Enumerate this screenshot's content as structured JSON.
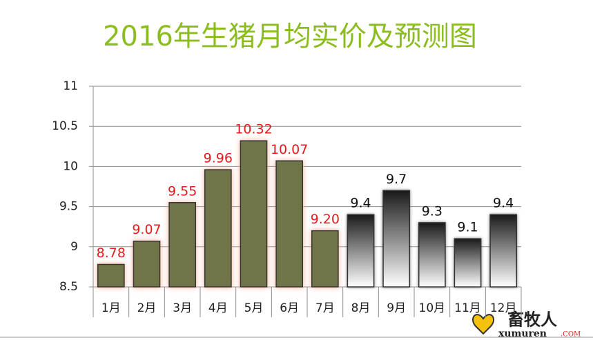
{
  "chart_data": {
    "type": "bar",
    "title": "2016年生猪月均实价及预测图",
    "categories": [
      "1月",
      "2月",
      "3月",
      "4月",
      "5月",
      "6月",
      "7月",
      "8月",
      "9月",
      "10月",
      "11月",
      "12月"
    ],
    "values": [
      8.78,
      9.07,
      9.55,
      9.96,
      10.32,
      10.07,
      9.2,
      9.4,
      9.7,
      9.3,
      9.1,
      9.4
    ],
    "value_labels": [
      "8.78",
      "9.07",
      "9.55",
      "9.96",
      "10.32",
      "10.07",
      "9.20",
      "9.4",
      "9.7",
      "9.3",
      "9.1",
      "9.4"
    ],
    "colors": [
      "#6f7548",
      "#6f7548",
      "#6f7548",
      "#6f7548",
      "#6f7548",
      "#6f7548",
      "#6f7548",
      "#1a1a1a",
      "#1a1a1a",
      "#1a1a1a",
      "#1a1a1a",
      "#1a1a1a"
    ],
    "fill_styles": [
      "solid",
      "solid",
      "solid",
      "solid",
      "solid",
      "solid",
      "solid",
      "gradient",
      "gradient",
      "gradient",
      "gradient",
      "gradient"
    ],
    "label_colors": [
      "#e31b1b",
      "#e31b1b",
      "#e31b1b",
      "#e31b1b",
      "#e31b1b",
      "#e31b1b",
      "#e31b1b",
      "#111111",
      "#111111",
      "#111111",
      "#111111",
      "#111111"
    ],
    "ylim": [
      8.5,
      11
    ],
    "yticks": [
      8.5,
      9,
      9.5,
      10,
      10.5,
      11
    ],
    "grid": true,
    "watermark": {
      "text": "畜牧人",
      "url": "xumuren",
      "domain": ".COM"
    }
  }
}
